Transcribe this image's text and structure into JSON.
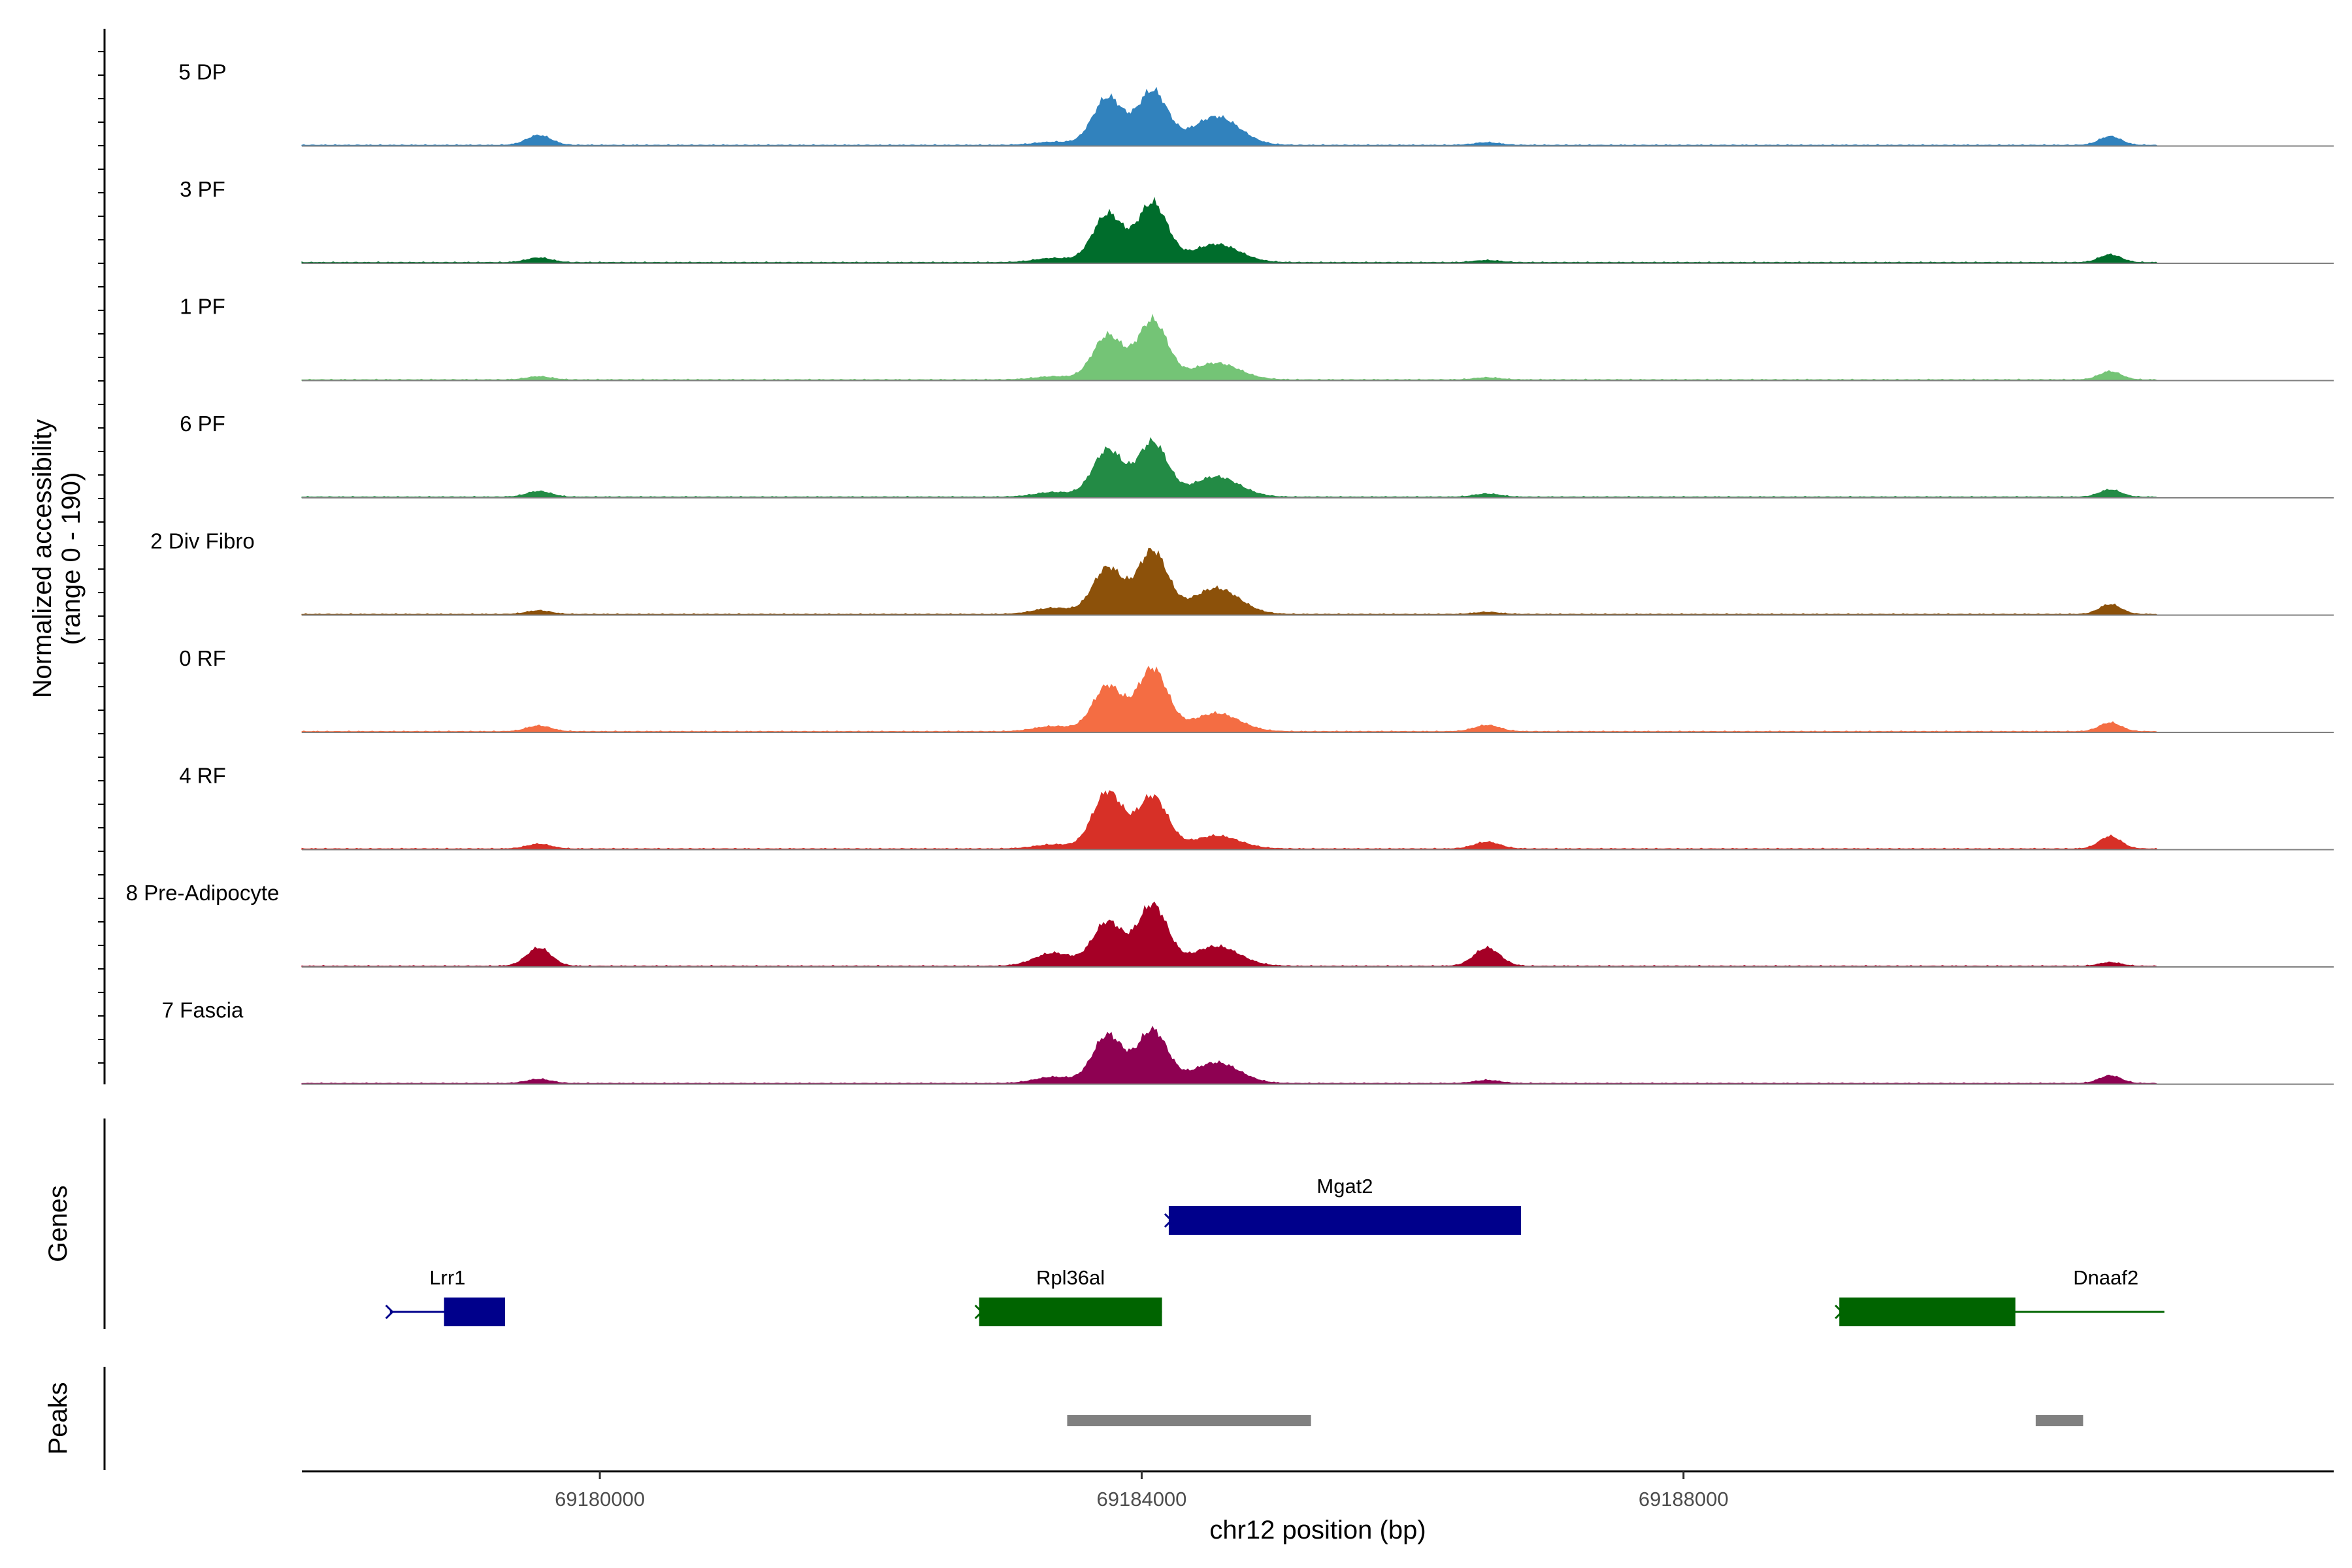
{
  "chart_data": {
    "type": "area",
    "title": "",
    "ylabel": "Normalized accessibility",
    "ylabel_range": "(range 0 - 190)",
    "xlabel": "chr12 position (bp)",
    "chromosome": "chr12",
    "xlim": [
      69177800,
      69192800
    ],
    "ylim": [
      0,
      190
    ],
    "x_ticks": [
      69180000,
      69184000,
      69188000
    ],
    "x_tick_labels": [
      "69180000",
      "69184000",
      "69188000"
    ],
    "signal_extent": [
      69177800,
      69191500
    ],
    "peak_shapes": [
      {
        "center": 69183750,
        "width": 110
      },
      {
        "center": 69184080,
        "width": 110
      },
      {
        "center": 69184550,
        "width": 170
      },
      {
        "center": 69179550,
        "width": 90
      },
      {
        "center": 69186550,
        "width": 95
      },
      {
        "center": 69191150,
        "width": 80
      },
      {
        "center": 69183350,
        "width": 140
      }
    ],
    "series": [
      {
        "name": "5 DP",
        "color": "#3182bd",
        "values": [
          92,
          104,
          55,
          19,
          5,
          17,
          6
        ]
      },
      {
        "name": "3 PF",
        "color": "#006d2c",
        "values": [
          93,
          114,
          35,
          9,
          4,
          15,
          8
        ]
      },
      {
        "name": "1 PF",
        "color": "#74c476",
        "values": [
          85,
          114,
          32,
          6,
          4,
          16,
          6
        ]
      },
      {
        "name": "6 PF",
        "color": "#238b45",
        "values": [
          91,
          105,
          39,
          11,
          6,
          14,
          9
        ]
      },
      {
        "name": "2 Div Fibro",
        "color": "#8c510a",
        "values": [
          90,
          122,
          50,
          7,
          4,
          19,
          12
        ]
      },
      {
        "name": "0 RF",
        "color": "#f46d43",
        "values": [
          88,
          121,
          35,
          11,
          12,
          17,
          10
        ]
      },
      {
        "name": "4 RF",
        "color": "#d73027",
        "values": [
          110,
          101,
          25,
          9,
          13,
          24,
          8
        ]
      },
      {
        "name": "8 Pre-Adipocyte",
        "color": "#a50026",
        "values": [
          85,
          118,
          38,
          35,
          35,
          7,
          25
        ]
      },
      {
        "name": "7 Fascia",
        "color": "#8e0152",
        "values": [
          93,
          102,
          40,
          8,
          6,
          15,
          12
        ]
      }
    ],
    "genes": [
      {
        "name": "Lrr1",
        "start": 69178450,
        "end": 69179300,
        "exon_start": 69178850,
        "exon_end": 69179300,
        "row": 2,
        "color": "#00008b"
      },
      {
        "name": "Mgat2",
        "start": 69184200,
        "end": 69186800,
        "exon_start": 69184200,
        "exon_end": 69186800,
        "row": 1,
        "color": "#00008b"
      },
      {
        "name": "Rpl36al",
        "start": 69182800,
        "end": 69184150,
        "exon_start": 69182800,
        "exon_end": 69184150,
        "row": 2,
        "color": "#006400"
      },
      {
        "name": "Dnaaf2",
        "start": 69189150,
        "end": 69191550,
        "exon_start": 69189150,
        "exon_end": 69190450,
        "row": 2,
        "color": "#006400"
      }
    ],
    "peaks": [
      {
        "start": 69183450,
        "end": 69185250
      },
      {
        "start": 69190600,
        "end": 69190950
      }
    ],
    "panel_labels": {
      "genes": "Genes",
      "peaks": "Peaks"
    },
    "colors": {
      "peak": "#808080",
      "baseline": "#808080",
      "axis": "#000000"
    }
  }
}
